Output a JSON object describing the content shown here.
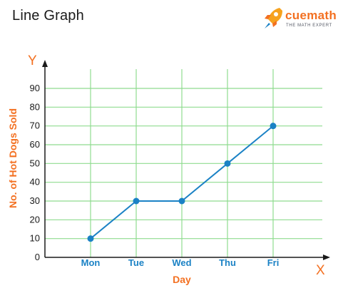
{
  "header": {
    "title": "Line Graph",
    "brand_name": "cuemath",
    "brand_tagline": "THE MATH EXPERT"
  },
  "colors": {
    "grid": "#8fdb8f",
    "line": "#1b82c5",
    "point": "#1b82c5",
    "axis_label": "#f37021",
    "x_tick": "#1b82c5",
    "brand": "#f37021"
  },
  "chart_data": {
    "type": "line",
    "title": "",
    "xlabel": "Day",
    "ylabel": "No. of Hot Dogs Sold",
    "x_axis_letter": "X",
    "y_axis_letter": "Y",
    "categories": [
      "Mon",
      "Tue",
      "Wed",
      "Thu",
      "Fri"
    ],
    "series": [
      {
        "values": [
          10,
          30,
          30,
          50,
          70
        ]
      }
    ],
    "ylim": [
      0,
      90
    ],
    "yticks": [
      0,
      10,
      20,
      30,
      40,
      50,
      60,
      70,
      80,
      90
    ],
    "grid": true,
    "legend": "none"
  }
}
